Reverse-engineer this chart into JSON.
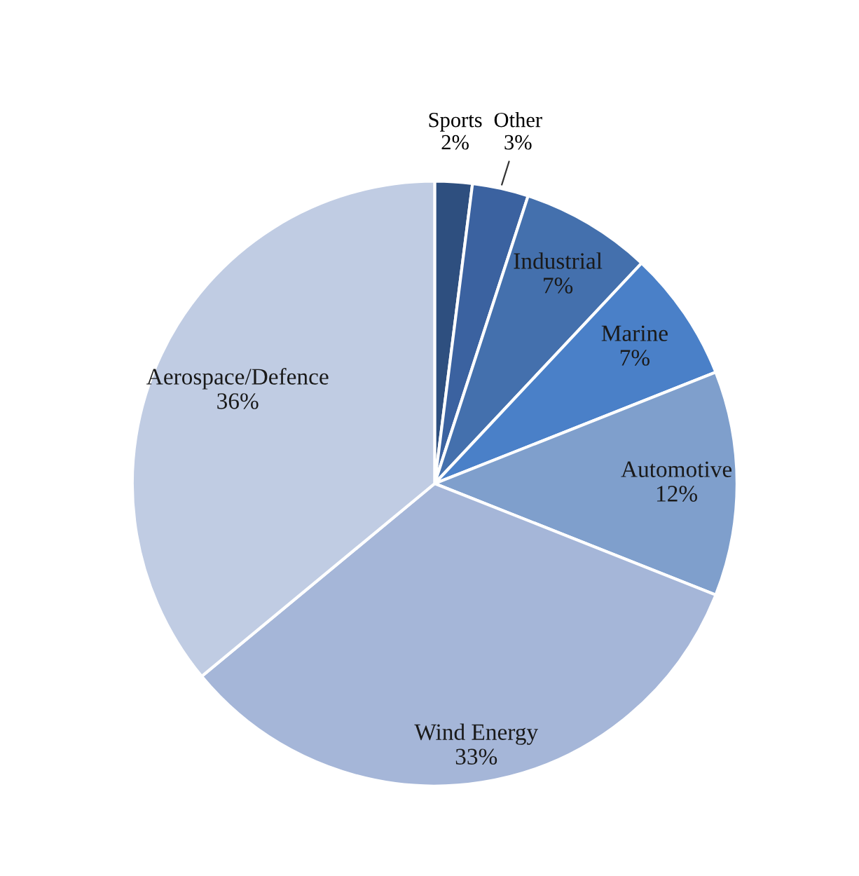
{
  "chart_data": {
    "type": "pie",
    "categories": [
      "Sports",
      "Other",
      "Industrial",
      "Marine",
      "Automotive",
      "Wind Energy",
      "Aerospace/Defence"
    ],
    "values": [
      2,
      3,
      7,
      7,
      12,
      33,
      36
    ],
    "colors": [
      "#2e4f7f",
      "#3b62a0",
      "#4470ad",
      "#4a80c8",
      "#7f9fcc",
      "#a5b6d8",
      "#c0cce3"
    ],
    "value_labels": [
      "2%",
      "3%",
      "7%",
      "7%",
      "12%",
      "33%",
      "36%"
    ],
    "legend": false
  }
}
